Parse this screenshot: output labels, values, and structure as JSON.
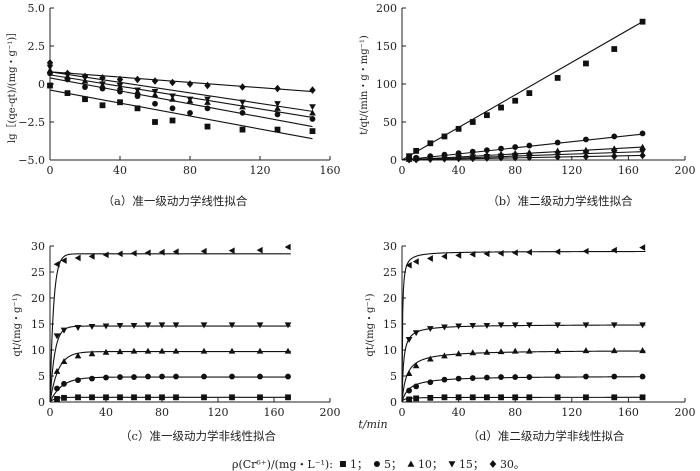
{
  "chart_data": [
    {
      "id": "a",
      "type": "scatter",
      "caption": "（a）准一级动力学线性拟合",
      "ylabel": "lg［(qe-qt)/(mg・g⁻¹)］",
      "xlabel": "",
      "xlim": [
        0,
        160
      ],
      "ylim": [
        -5,
        5
      ],
      "xticks": [
        0,
        40,
        80,
        120,
        160
      ],
      "yticks": [
        5.0,
        2.5,
        0,
        -2.5,
        -5.0
      ],
      "ytick_labels": [
        "5.0",
        "2.5",
        "0",
        "−2.5",
        "−5.0"
      ],
      "series": [
        {
          "name": "1",
          "marker": "square",
          "x": [
            0,
            10,
            20,
            30,
            40,
            50,
            60,
            70,
            90,
            110,
            130,
            150
          ],
          "y": [
            -0.1,
            -0.6,
            -1.0,
            -1.4,
            -1.2,
            -1.6,
            -2.5,
            -2.4,
            -2.8,
            -3.0,
            -3.0,
            -3.1
          ],
          "fit": [
            [
              0,
              -0.4
            ],
            [
              150,
              -3.6
            ]
          ]
        },
        {
          "name": "5",
          "marker": "circle",
          "x": [
            0,
            10,
            20,
            30,
            40,
            50,
            60,
            70,
            80,
            90,
            110,
            130,
            150
          ],
          "y": [
            0.7,
            0.3,
            -0.2,
            -0.3,
            -0.5,
            -0.8,
            -1.3,
            -1.6,
            -1.9,
            -1.6,
            -1.9,
            -2.0,
            -2.3
          ],
          "fit": [
            [
              0,
              0.4
            ],
            [
              150,
              -2.8
            ]
          ]
        },
        {
          "name": "10",
          "marker": "triangle-up",
          "x": [
            0,
            10,
            20,
            30,
            40,
            50,
            60,
            70,
            80,
            90,
            110,
            130,
            150
          ],
          "y": [
            0.9,
            0.5,
            0.2,
            -0.1,
            -0.2,
            -0.5,
            -0.7,
            -1.0,
            -1.1,
            -1.2,
            -1.5,
            -1.6,
            -1.9
          ],
          "fit": [
            [
              0,
              0.6
            ],
            [
              150,
              -2.2
            ]
          ]
        },
        {
          "name": "15",
          "marker": "triangle-down",
          "x": [
            0,
            10,
            20,
            30,
            40,
            50,
            60,
            70,
            80,
            90,
            110,
            130,
            150
          ],
          "y": [
            1.1,
            0.6,
            0.4,
            0.0,
            -0.1,
            -0.4,
            -0.5,
            -0.8,
            -1.0,
            -1.0,
            -1.2,
            -1.3,
            -1.5
          ],
          "fit": [
            [
              0,
              0.8
            ],
            [
              150,
              -1.8
            ]
          ]
        },
        {
          "name": "30",
          "marker": "diamond",
          "x": [
            0,
            10,
            20,
            30,
            40,
            50,
            60,
            70,
            80,
            90,
            110,
            130,
            150
          ],
          "y": [
            1.4,
            0.7,
            0.5,
            0.4,
            0.3,
            0.3,
            0.2,
            0.1,
            0.0,
            -0.1,
            -0.2,
            -0.3,
            -0.4
          ],
          "fit": [
            [
              0,
              0.8
            ],
            [
              150,
              -0.5
            ]
          ]
        }
      ]
    },
    {
      "id": "b",
      "type": "scatter",
      "caption": "（b）准二级动力学线性拟合",
      "ylabel": "t/qt/(min・g・mg⁻¹)",
      "xlabel": "",
      "xlim": [
        0,
        200
      ],
      "ylim": [
        0,
        200
      ],
      "xticks": [
        0,
        40,
        80,
        120,
        160,
        200
      ],
      "yticks": [
        0,
        50,
        100,
        150,
        200
      ],
      "ytick_labels": [
        "0",
        "50",
        "100",
        "150",
        "200"
      ],
      "series": [
        {
          "name": "1",
          "marker": "square",
          "x": [
            5,
            10,
            20,
            30,
            40,
            50,
            60,
            70,
            80,
            90,
            110,
            130,
            150,
            170
          ],
          "y": [
            5,
            12,
            22,
            31,
            41,
            50,
            59,
            69,
            78,
            88,
            108,
            127,
            146,
            182
          ],
          "fit": [
            [
              0,
              0
            ],
            [
              170,
              182
            ]
          ]
        },
        {
          "name": "5",
          "marker": "circle",
          "x": [
            5,
            10,
            20,
            30,
            40,
            50,
            60,
            70,
            80,
            90,
            110,
            130,
            150,
            170
          ],
          "y": [
            2,
            3,
            5,
            7,
            9,
            11,
            13,
            15,
            17,
            19,
            23,
            27,
            31,
            35
          ],
          "fit": [
            [
              0,
              0
            ],
            [
              170,
              34
            ]
          ]
        },
        {
          "name": "10",
          "marker": "triangle-up",
          "x": [
            5,
            10,
            20,
            30,
            40,
            50,
            60,
            70,
            80,
            90,
            110,
            130,
            150,
            170
          ],
          "y": [
            1,
            2,
            3,
            4,
            5,
            6,
            7,
            8,
            9,
            10,
            12,
            13,
            15,
            17
          ],
          "fit": [
            [
              0,
              0
            ],
            [
              170,
              17
            ]
          ]
        },
        {
          "name": "15",
          "marker": "triangle-down",
          "x": [
            5,
            10,
            20,
            30,
            40,
            50,
            60,
            70,
            80,
            90,
            110,
            130,
            150,
            170
          ],
          "y": [
            0.5,
            1,
            2,
            2.5,
            3,
            4,
            4.5,
            5,
            6,
            6.5,
            8,
            9,
            10,
            11
          ],
          "fit": [
            [
              0,
              0
            ],
            [
              170,
              11
            ]
          ]
        },
        {
          "name": "30",
          "marker": "diamond",
          "x": [
            5,
            10,
            20,
            30,
            40,
            50,
            60,
            70,
            80,
            90,
            110,
            130,
            150,
            170
          ],
          "y": [
            0.3,
            0.5,
            1,
            1.5,
            2,
            2,
            2.5,
            3,
            3,
            3.5,
            4,
            4.5,
            5,
            6
          ],
          "fit": [
            [
              0,
              0
            ],
            [
              170,
              6
            ]
          ]
        }
      ]
    },
    {
      "id": "c",
      "type": "scatter",
      "caption": "（c）准一级动力学非线性拟合",
      "ylabel": "qt/(mg・g⁻¹)",
      "xlabel": "t/min",
      "xlim": [
        0,
        200
      ],
      "ylim": [
        0,
        30
      ],
      "xticks": [
        0,
        40,
        80,
        120,
        160,
        200
      ],
      "yticks": [
        0,
        5,
        10,
        15,
        20,
        25,
        30
      ],
      "ytick_labels": [
        "0",
        "5",
        "10",
        "15",
        "20",
        "25",
        "30"
      ],
      "x_points": [
        5,
        10,
        20,
        30,
        40,
        50,
        60,
        70,
        80,
        90,
        110,
        130,
        150,
        170
      ],
      "series": [
        {
          "name": "1",
          "marker": "square",
          "y": [
            0.6,
            0.8,
            0.9,
            0.9,
            0.9,
            0.9,
            0.9,
            0.9,
            0.9,
            0.9,
            0.9,
            0.9,
            0.9,
            0.9
          ],
          "model": {
            "kind": "pfo",
            "qe": 0.9,
            "k": 0.3
          }
        },
        {
          "name": "5",
          "marker": "circle",
          "y": [
            2.6,
            3.5,
            4.2,
            4.5,
            4.7,
            4.8,
            4.8,
            4.9,
            4.9,
            4.9,
            4.9,
            4.9,
            4.9,
            4.9
          ],
          "model": {
            "kind": "pfo",
            "qe": 4.8,
            "k": 0.12
          }
        },
        {
          "name": "10",
          "marker": "triangle-up",
          "y": [
            5.9,
            7.8,
            8.9,
            9.3,
            9.6,
            9.7,
            9.8,
            9.8,
            9.8,
            9.8,
            9.8,
            9.8,
            9.8,
            9.8
          ],
          "model": {
            "kind": "pfo",
            "qe": 9.7,
            "k": 0.17
          }
        },
        {
          "name": "15",
          "marker": "triangle-down",
          "y": [
            12.7,
            13.8,
            14.3,
            14.5,
            14.6,
            14.7,
            14.7,
            14.8,
            14.8,
            14.8,
            14.8,
            14.8,
            14.8,
            14.8
          ],
          "model": {
            "kind": "pfo",
            "qe": 14.6,
            "k": 0.3
          }
        },
        {
          "name": "30",
          "marker": "triangle-left",
          "y": [
            26.5,
            27.2,
            27.7,
            28.0,
            28.3,
            28.5,
            28.6,
            28.7,
            28.8,
            28.9,
            29.0,
            29.1,
            29.2,
            29.8
          ],
          "model": {
            "kind": "pfo",
            "qe": 28.5,
            "k": 0.4
          }
        }
      ]
    },
    {
      "id": "d",
      "type": "scatter",
      "caption": "（d）准二级动力学非线性拟合",
      "ylabel": "qt/(mg・g⁻¹)",
      "xlabel": "",
      "xlim": [
        0,
        200
      ],
      "ylim": [
        0,
        30
      ],
      "xticks": [
        0,
        40,
        80,
        120,
        160,
        200
      ],
      "yticks": [
        0,
        5,
        10,
        15,
        20,
        25,
        30
      ],
      "ytick_labels": [
        "0",
        "5",
        "10",
        "15",
        "20",
        "25",
        "30"
      ],
      "x_points": [
        5,
        10,
        20,
        30,
        40,
        50,
        60,
        70,
        80,
        90,
        110,
        130,
        150,
        170
      ],
      "series": [
        {
          "name": "1",
          "marker": "square",
          "y": [
            0.5,
            0.7,
            0.8,
            0.9,
            0.9,
            0.9,
            0.9,
            0.9,
            0.9,
            0.9,
            0.9,
            0.9,
            0.9,
            0.9
          ],
          "model": {
            "kind": "pso",
            "qe": 0.9,
            "k": 0.8
          }
        },
        {
          "name": "5",
          "marker": "circle",
          "y": [
            2.2,
            3.0,
            3.8,
            4.3,
            4.5,
            4.6,
            4.7,
            4.8,
            4.8,
            4.8,
            4.9,
            4.9,
            4.9,
            4.9
          ],
          "model": {
            "kind": "pso",
            "qe": 5.0,
            "k": 0.04
          }
        },
        {
          "name": "10",
          "marker": "triangle-up",
          "y": [
            5.5,
            7.0,
            8.3,
            8.9,
            9.3,
            9.5,
            9.6,
            9.7,
            9.8,
            9.8,
            9.8,
            9.9,
            9.9,
            9.9
          ],
          "model": {
            "kind": "pso",
            "qe": 10.0,
            "k": 0.03
          }
        },
        {
          "name": "15",
          "marker": "triangle-down",
          "y": [
            12.0,
            13.3,
            14.1,
            14.4,
            14.6,
            14.7,
            14.7,
            14.8,
            14.8,
            14.8,
            14.8,
            14.8,
            14.8,
            14.8
          ],
          "model": {
            "kind": "pso",
            "qe": 14.9,
            "k": 0.06
          }
        },
        {
          "name": "30",
          "marker": "triangle-left",
          "y": [
            26.3,
            27.0,
            27.6,
            28.0,
            28.2,
            28.4,
            28.5,
            28.6,
            28.7,
            28.8,
            28.9,
            29.0,
            29.2,
            29.7
          ],
          "model": {
            "kind": "pso",
            "qe": 29.0,
            "k": 0.1
          }
        }
      ]
    }
  ],
  "legend": {
    "prefix": "ρ(Cr⁶⁺)/(mg・L⁻¹):",
    "items": [
      {
        "marker": "square",
        "label": "1；"
      },
      {
        "marker": "circle",
        "label": "5；"
      },
      {
        "marker": "triangle-up",
        "label": "10；"
      },
      {
        "marker": "triangle-down",
        "label": "15；"
      },
      {
        "marker": "diamond",
        "label": "30。"
      }
    ]
  }
}
